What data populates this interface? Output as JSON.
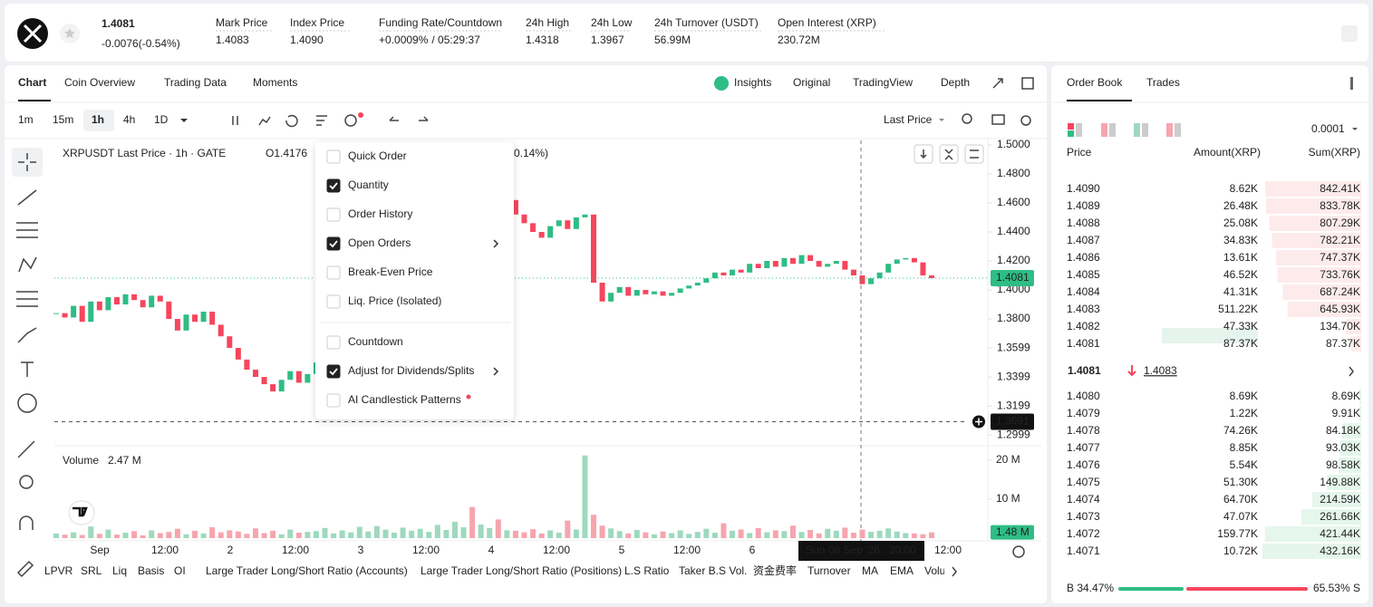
{
  "header": {
    "price": "1.4081",
    "change": "-0.0076(-0.54%)",
    "stats": [
      {
        "label": "Mark Price",
        "value": "1.4083"
      },
      {
        "label": "Index Price",
        "value": "1.4090"
      },
      {
        "label": "Funding Rate/Countdown",
        "value": "+0.0009%",
        "value2": "/ 05:29:37"
      },
      {
        "label": "24h High",
        "value": "1.4318"
      },
      {
        "label": "24h Low",
        "value": "1.3967"
      },
      {
        "label": "24h Turnover (USDT)",
        "value": "56.99M"
      },
      {
        "label": "Open Interest (XRP)",
        "value": "230.72M"
      }
    ]
  },
  "chart_tabs": [
    "Chart",
    "Coin Overview",
    "Trading Data",
    "Moments"
  ],
  "view_tabs": [
    "Insights",
    "Original",
    "TradingView",
    "Depth"
  ],
  "intervals": [
    "1m",
    "15m",
    "1h",
    "4h",
    "1D"
  ],
  "price_type": "Last Price",
  "chart_data": {
    "type": "candlestick",
    "title": "XRPUSDT Last Price · 1h · GATE",
    "ohlc": "O1.4176",
    "change": "0.14%)",
    "up_color": "#2ebd85",
    "down_color": "#f6465d",
    "close": [
      1.384,
      1.381,
      1.389,
      1.378,
      1.392,
      1.386,
      1.395,
      1.39,
      1.397,
      1.393,
      1.388,
      1.396,
      1.392,
      1.38,
      1.372,
      1.383,
      1.378,
      1.385,
      1.376,
      1.368,
      1.36,
      1.352,
      1.345,
      1.34,
      1.335,
      1.33,
      1.338,
      1.344,
      1.336,
      1.342,
      1.35,
      1.358,
      1.365,
      1.372,
      1.38,
      1.388,
      1.395,
      1.402,
      1.41,
      1.418,
      1.425,
      1.432,
      1.438,
      1.442,
      1.448,
      1.452,
      1.456,
      1.46,
      1.455,
      1.462,
      1.465,
      1.458,
      1.462,
      1.452,
      1.446,
      1.44,
      1.436,
      1.444,
      1.448,
      1.442,
      1.45,
      1.452,
      1.405,
      1.392,
      1.398,
      1.402,
      1.396,
      1.4,
      1.397,
      1.399,
      1.396,
      1.398,
      1.401,
      1.403,
      1.405,
      1.408,
      1.412,
      1.41,
      1.414,
      1.412,
      1.418,
      1.415,
      1.42,
      1.416,
      1.422,
      1.418,
      1.424,
      1.42,
      1.416,
      1.418,
      1.42,
      1.414,
      1.41,
      1.404,
      1.408,
      1.412,
      1.418,
      1.421,
      1.422,
      1.419,
      1.41,
      1.4081
    ],
    "ylim": [
      1.2938,
      1.5031
    ],
    "yticks": [
      {
        "value": 1.5,
        "label": "1.5000"
      },
      {
        "value": 1.48,
        "label": "1.4800"
      },
      {
        "value": 1.46,
        "label": "1.4600"
      },
      {
        "value": 1.44,
        "label": "1.4400"
      },
      {
        "value": 1.42,
        "label": "1.4200"
      },
      {
        "value": 1.4,
        "label": "1.4000"
      },
      {
        "value": 1.38,
        "label": "1.3800"
      },
      1.3599,
      1.3399,
      1.3199,
      1.2999
    ],
    "last_price": {
      "value": 1.4081,
      "label": "1.4081"
    },
    "crosshair": {
      "value": 1.3091,
      "label": "1.3091"
    },
    "crosshair_time": "Sun 06 Sep '26   20:00",
    "volume_title": "Volume",
    "volume_value": "2.47 M",
    "volume": [
      1.2,
      0.9,
      1.5,
      0.8,
      3.0,
      1.1,
      2.2,
      0.9,
      1.4,
      1.8,
      0.7,
      2.0,
      1.3,
      1.6,
      2.4,
      1.0,
      1.9,
      1.2,
      2.8,
      1.5,
      2.0,
      1.7,
      1.1,
      2.5,
      1.3,
      1.9,
      1.0,
      2.2,
      1.4,
      1.6,
      1.8,
      2.6,
      1.2,
      2.0,
      1.5,
      2.9,
      1.7,
      3.1,
      2.2,
      1.4,
      2.7,
      1.9,
      2.4,
      1.6,
      3.4,
      2.1,
      4.2,
      2.8,
      8.0,
      3.5,
      2.6,
      4.8,
      2.0,
      1.9,
      1.5,
      2.3,
      1.2,
      2.0,
      1.4,
      4.5,
      2.2,
      21.2,
      6.0,
      3.2,
      2.5,
      1.8,
      1.2,
      2.1,
      1.5,
      1.0,
      1.7,
      1.3,
      2.0,
      1.1,
      1.6,
      2.4,
      1.4,
      3.8,
      1.9,
      2.2,
      1.3,
      2.6,
      1.5,
      2.0,
      1.8,
      3.2,
      1.6,
      2.1,
      1.2,
      2.4,
      1.9,
      2.7,
      1.4,
      2.2,
      1.6,
      1.9,
      2.5,
      1.7,
      1.3,
      1.2,
      1.0,
      1.48
    ],
    "vlim": [
      0,
      23
    ],
    "vticks": [
      {
        "value": 20,
        "label": "20 M"
      },
      {
        "value": 10,
        "label": "10 M"
      }
    ],
    "last_volume": {
      "value": 1.48,
      "label": "1.48 M"
    },
    "x_labels": [
      "Sep",
      "12:00",
      "2",
      "12:00",
      "3",
      "12:00",
      "4",
      "12:00",
      "5",
      "12:00",
      "6",
      "12:00"
    ]
  },
  "menu": [
    {
      "label": "Quick Order",
      "checked": false
    },
    {
      "label": "Quantity",
      "checked": true
    },
    {
      "label": "Order History",
      "checked": false
    },
    {
      "label": "Open Orders",
      "checked": true,
      "submenu": true
    },
    {
      "label": "Break-Even Price",
      "checked": false
    },
    {
      "label": "Liq. Price (Isolated)",
      "checked": false
    },
    {
      "label": "Countdown",
      "checked": false
    },
    {
      "label": "Adjust for Dividends/Splits",
      "checked": true,
      "submenu": true
    },
    {
      "label": "AI Candlestick Patterns",
      "checked": false,
      "dot": true
    }
  ],
  "indicators": [
    "LPVR",
    "SRL",
    "Liq",
    "Basis",
    "OI",
    "Large Trader Long/Short Ratio (Accounts)",
    "Large Trader Long/Short Ratio (Positions)",
    "L.S Ratio",
    "Taker B.S Vol.",
    "资金费率",
    "Turnover",
    "MA",
    "EMA",
    "Volume"
  ],
  "order_book": {
    "tabs": [
      "Order Book",
      "Trades"
    ],
    "precision": "0.0001",
    "columns": [
      "Price",
      "Amount(XRP)",
      "Sum(XRP)"
    ],
    "asks": [
      [
        "1.4090",
        "8.62K",
        {
          "value": 842410,
          "label": "842.41K"
        }
      ],
      [
        "1.4089",
        "26.48K",
        {
          "value": 833780,
          "label": "833.78K"
        }
      ],
      [
        "1.4088",
        "25.08K",
        {
          "value": 807290,
          "label": "807.29K"
        }
      ],
      [
        "1.4087",
        "34.83K",
        {
          "value": 782210,
          "label": "782.21K"
        }
      ],
      [
        "1.4086",
        "13.61K",
        {
          "value": 747370,
          "label": "747.37K"
        }
      ],
      [
        "1.4085",
        "46.52K",
        {
          "value": 733760,
          "label": "733.76K"
        }
      ],
      [
        "1.4084",
        "41.31K",
        {
          "value": 687240,
          "label": "687.24K"
        }
      ],
      [
        "1.4083",
        "511.22K",
        {
          "value": 645930,
          "label": "645.93K"
        }
      ],
      [
        "1.4082",
        "47.33K",
        {
          "value": 134700,
          "label": "134.70K"
        }
      ],
      [
        "1.4081",
        "87.37K",
        {
          "value": 87370,
          "label": "87.37K"
        }
      ]
    ],
    "mid_price": "1.4081",
    "mark_price": "1.4083",
    "bids": [
      [
        "1.4080",
        "8.69K",
        {
          "value": 8690,
          "label": "8.69K"
        }
      ],
      [
        "1.4079",
        "1.22K",
        {
          "value": 9910,
          "label": "9.91K"
        }
      ],
      [
        "1.4078",
        "74.26K",
        {
          "value": 84180,
          "label": "84.18K"
        }
      ],
      [
        "1.4077",
        "8.85K",
        {
          "value": 93030,
          "label": "93.03K"
        }
      ],
      [
        "1.4076",
        "5.54K",
        {
          "value": 98580,
          "label": "98.58K"
        }
      ],
      [
        "1.4075",
        "51.30K",
        {
          "value": 149880,
          "label": "149.88K"
        }
      ],
      [
        "1.4074",
        "64.70K",
        {
          "value": 214590,
          "label": "214.59K"
        }
      ],
      [
        "1.4073",
        "47.07K",
        {
          "value": 261660,
          "label": "261.66K"
        }
      ],
      [
        "1.4072",
        "159.77K",
        {
          "value": 421440,
          "label": "421.44K"
        }
      ],
      [
        "1.4071",
        "10.72K",
        {
          "value": 432160,
          "label": "432.16K"
        }
      ]
    ],
    "buy_ratio": {
      "value": 34.47,
      "label": "B 34.47%"
    },
    "sell_ratio": {
      "value": 65.53,
      "label": "65.53% S"
    }
  }
}
